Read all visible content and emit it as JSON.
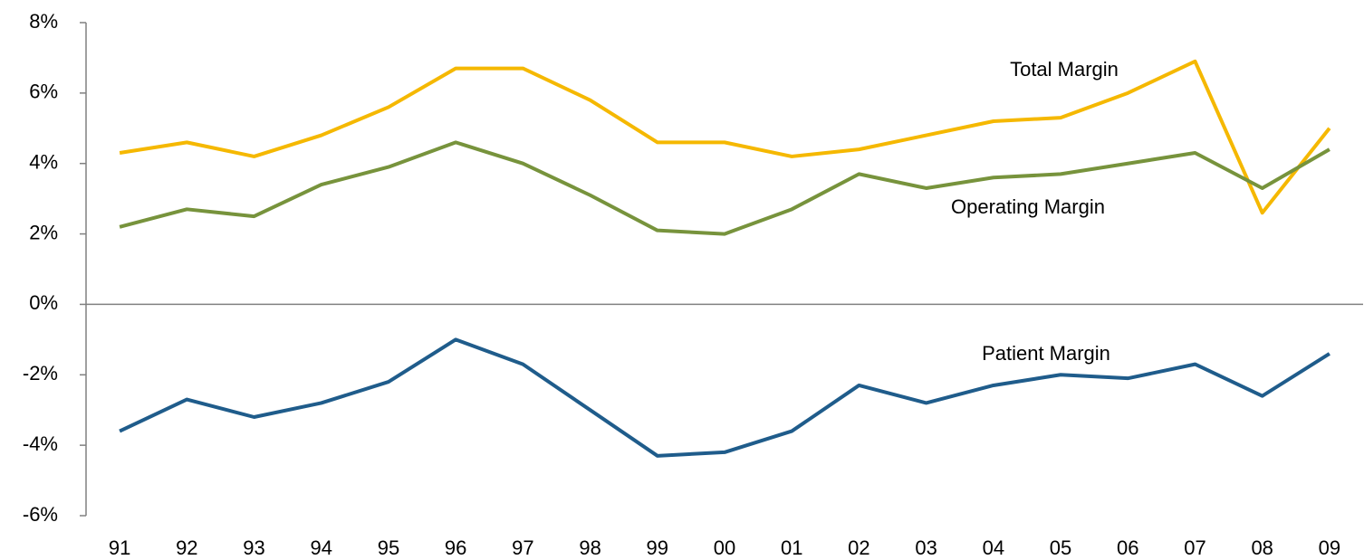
{
  "chart_data": {
    "type": "line",
    "categories": [
      "91",
      "92",
      "93",
      "94",
      "95",
      "96",
      "97",
      "98",
      "99",
      "00",
      "01",
      "02",
      "03",
      "04",
      "05",
      "06",
      "07",
      "08",
      "09"
    ],
    "series": [
      {
        "name": "Total Margin",
        "color": "#f5b800",
        "values": [
          4.3,
          4.6,
          4.2,
          4.8,
          5.6,
          6.7,
          6.7,
          5.8,
          4.6,
          4.6,
          4.2,
          4.4,
          4.8,
          5.2,
          5.3,
          6.0,
          6.9,
          2.6,
          5.0
        ]
      },
      {
        "name": "Operating Margin",
        "color": "#77933c",
        "values": [
          2.2,
          2.7,
          2.5,
          3.4,
          3.9,
          4.6,
          4.0,
          3.1,
          2.1,
          2.0,
          2.7,
          3.7,
          3.3,
          3.6,
          3.7,
          4.0,
          4.3,
          3.3,
          4.4
        ]
      },
      {
        "name": "Patient Margin",
        "color": "#1f5c8b",
        "values": [
          -3.6,
          -2.7,
          -3.2,
          -2.8,
          -2.2,
          -1.0,
          -1.7,
          -3.0,
          -4.3,
          -4.2,
          -3.6,
          -2.3,
          -2.8,
          -2.3,
          -2.0,
          -2.1,
          -1.7,
          -2.6,
          -1.4
        ]
      }
    ],
    "ylim": [
      -6,
      8
    ],
    "yticks": [
      {
        "value": -6,
        "label": "-6%"
      },
      {
        "value": -4,
        "label": "-4%"
      },
      {
        "value": -2,
        "label": "-2%"
      },
      {
        "value": 0,
        "label": "0%"
      },
      {
        "value": 2,
        "label": "2%"
      },
      {
        "value": 4,
        "label": "4%"
      },
      {
        "value": 6,
        "label": "6%"
      },
      {
        "value": 8,
        "label": "8%"
      }
    ]
  }
}
